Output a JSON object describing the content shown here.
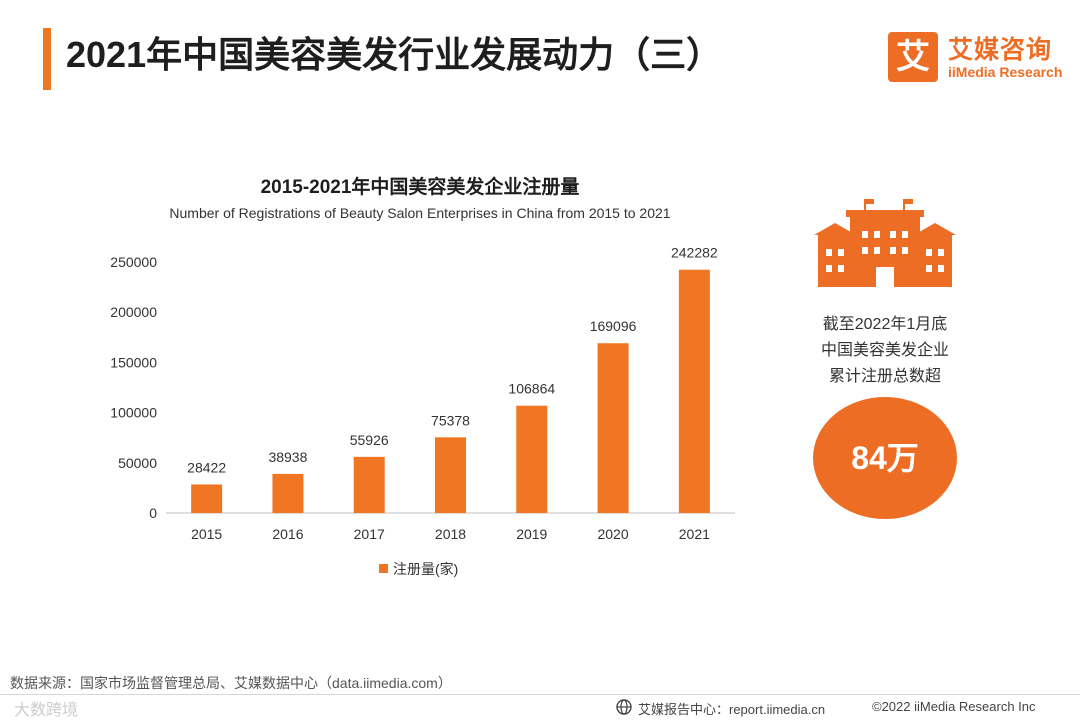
{
  "header": {
    "title": "2021年中国美容美发行业发展动力（三）",
    "logo_mark": "艾",
    "logo_cn": "艾媒咨询",
    "logo_en": "iiMedia Research"
  },
  "chart_data": {
    "type": "bar",
    "title": "2015-2021年中国美容美发企业注册量",
    "subtitle": "Number of Registrations of Beauty Salon Enterprises in China from 2015 to 2021",
    "categories": [
      "2015",
      "2016",
      "2017",
      "2018",
      "2019",
      "2020",
      "2021"
    ],
    "series": [
      {
        "name": "注册量(家)",
        "values": [
          28422,
          38938,
          55926,
          75378,
          106864,
          169096,
          242282
        ]
      }
    ],
    "ylim": [
      0,
      250000
    ],
    "yticks": [
      0,
      50000,
      100000,
      150000,
      200000,
      250000
    ],
    "grid": false,
    "legend": "bottom",
    "color": "#f07623"
  },
  "side": {
    "icon": "office-building-icon",
    "lines": [
      "截至2022年1月底",
      "中国美容美发企业",
      "累计注册总数超"
    ],
    "badge": "84万"
  },
  "footer": {
    "source": "数据来源：国家市场监督管理总局、艾媒数据中心（data.iimedia.com）",
    "watermark": "大数跨境",
    "report": "艾媒报告中心：report.iimedia.cn",
    "copyright": "©2022  iiMedia Research  Inc"
  },
  "colors": {
    "accent": "#ee6d25",
    "bar": "#f07623",
    "badge": "#ee6d25"
  }
}
